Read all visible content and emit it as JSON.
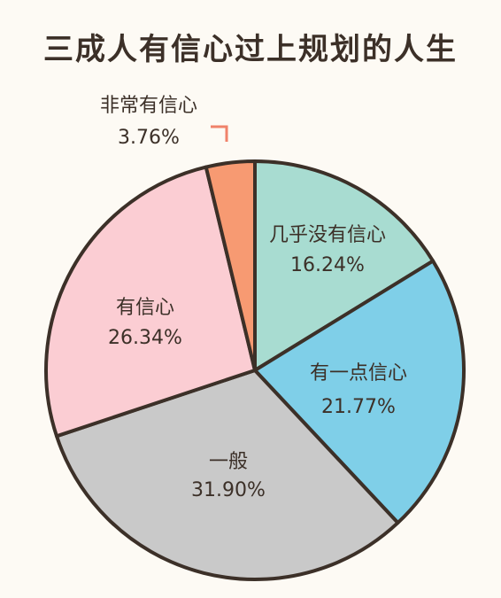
{
  "chart_data": {
    "type": "pie",
    "title": "三成人有信心过上规划的人生",
    "slices": [
      {
        "label": "几乎没有信心",
        "value_label": "16.24%",
        "value": 16.24,
        "color": "#a8dcd1"
      },
      {
        "label": "有一点信心",
        "value_label": "21.77%",
        "value": 21.77,
        "color": "#7fcfe8"
      },
      {
        "label": "一般",
        "value_label": "31.90%",
        "value": 31.9,
        "color": "#c9c9c9"
      },
      {
        "label": "有信心",
        "value_label": "26.34%",
        "value": 26.34,
        "color": "#fbcdd3"
      },
      {
        "label": "非常有信心",
        "value_label": "3.76%",
        "value": 3.76,
        "color": "#f79a72"
      }
    ],
    "outline_color": "#3c3028",
    "callout_color": "#f0826a"
  }
}
